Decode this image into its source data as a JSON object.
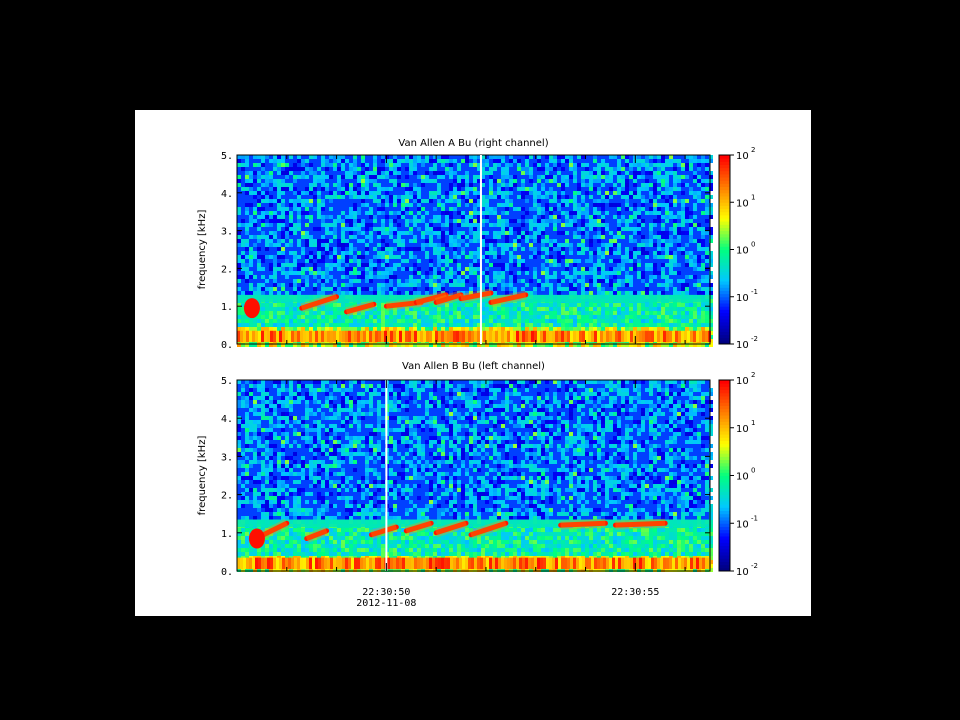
{
  "chart_data": [
    {
      "type": "heatmap",
      "title": "Van Allen A Bu (right channel)",
      "ylabel": "frequency [kHz]",
      "ylim": [
        0,
        5
      ],
      "yticks": [
        "0.",
        "1.",
        "2.",
        "3.",
        "4.",
        "5."
      ],
      "colorbar": {
        "scale": "log",
        "range": [
          0.01,
          100
        ],
        "ticks": [
          "10^-2",
          "10^-1",
          "10^0",
          "10^1",
          "10^2"
        ]
      },
      "colormap": [
        "#00007f",
        "#0000ff",
        "#00c8ff",
        "#00ff80",
        "#ffff00",
        "#ff8000",
        "#ff0000"
      ],
      "marker_time": "22:30:51.9",
      "features": [
        {
          "name": "",
          "band_kHz": [
            0.05,
            0.35
          ],
          "intensity": 10
        },
        {
          "name": "",
          "band_kHz": [
            1.1,
            1.3
          ],
          "intensity": 0.5
        },
        {
          "name": "",
          "band_kHz": [
            0.6,
            1.3
          ],
          "intensity": 50
        }
      ]
    },
    {
      "type": "heatmap",
      "title": "Van Allen B Bu (left channel)",
      "ylabel": "frequency [kHz]",
      "ylim": [
        0,
        5
      ],
      "yticks": [
        "0.",
        "1.",
        "2.",
        "3.",
        "4.",
        "5."
      ],
      "colorbar": {
        "scale": "log",
        "range": [
          0.01,
          100
        ],
        "ticks": [
          "10^-2",
          "10^-1",
          "10^0",
          "10^1",
          "10^2"
        ]
      },
      "colormap": [
        "#00007f",
        "#0000ff",
        "#00c8ff",
        "#00ff80",
        "#ffff00",
        "#ff8000",
        "#ff0000"
      ],
      "marker_time": "22:30:50",
      "features": [
        {
          "name": "",
          "band_kHz": [
            0.05,
            0.35
          ],
          "intensity": 10
        },
        {
          "name": "",
          "band_kHz": [
            1.15,
            1.35
          ],
          "intensity": 0.5
        },
        {
          "name": "",
          "band_kHz": [
            0.6,
            1.3
          ],
          "intensity": 50
        }
      ]
    }
  ],
  "xaxis": {
    "ticks": [
      {
        "label": "22:30:50",
        "sublabel": "2012-11-08",
        "t": 50
      },
      {
        "label": "22:30:55",
        "sublabel": "",
        "t": 55
      }
    ],
    "xlim": [
      "22:30:47",
      "22:30:56.5"
    ]
  }
}
